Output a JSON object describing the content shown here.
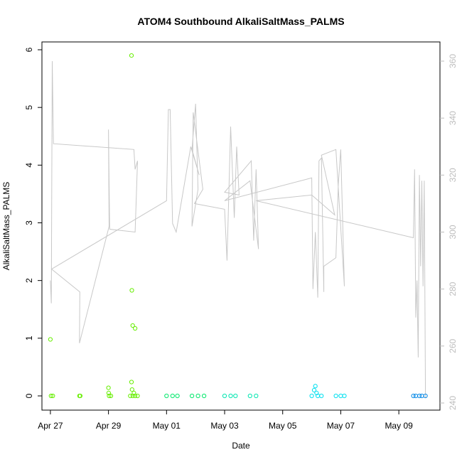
{
  "chart_data": {
    "type": "scatter",
    "title": "ATOM4 Southbound AlkaliSaltMass_PALMS",
    "xlabel": "Date",
    "ylabel": "AlkaliSaltMass_PALMS",
    "ylim": [
      0,
      6
    ],
    "y_ticks": [
      "0",
      "1",
      "2",
      "3",
      "4",
      "5",
      "6"
    ],
    "xlim": [
      "2018-04-26T17:00",
      "2018-05-10T10:00"
    ],
    "x_ticks": [
      {
        "date": "2018-04-27",
        "label": "Apr 27"
      },
      {
        "date": "2018-04-29",
        "label": "Apr 29"
      },
      {
        "date": "2018-05-01",
        "label": "May 01"
      },
      {
        "date": "2018-05-03",
        "label": "May 03"
      },
      {
        "date": "2018-05-05",
        "label": "May 05"
      },
      {
        "date": "2018-05-07",
        "label": "May 07"
      },
      {
        "date": "2018-05-09",
        "label": "May 09"
      }
    ],
    "y2lim": [
      240,
      363
    ],
    "y2_ticks": [
      "240",
      "260",
      "280",
      "300",
      "320",
      "340",
      "360"
    ],
    "series": [
      {
        "color": "#66ee00",
        "points": [
          [
            "2018-04-27T00:00",
            0.98
          ],
          [
            "2018-04-27T00:30",
            0.0
          ],
          [
            "2018-04-27T02:00",
            0.0
          ],
          [
            "2018-04-28T00:00",
            0.0
          ],
          [
            "2018-04-28T00:40",
            0.0
          ],
          [
            "2018-04-29T00:00",
            0.14
          ],
          [
            "2018-04-29T00:10",
            0.05
          ],
          [
            "2018-04-29T00:30",
            0.0
          ],
          [
            "2018-04-29T02:00",
            0.0
          ],
          [
            "2018-04-29T19:00",
            5.9
          ],
          [
            "2018-04-29T19:20",
            1.83
          ],
          [
            "2018-04-29T20:00",
            1.22
          ],
          [
            "2018-04-29T22:00",
            1.17
          ],
          [
            "2018-04-29T19:00",
            0.24
          ],
          [
            "2018-04-29T19:30",
            0.11
          ],
          [
            "2018-04-29T21:00",
            0.05
          ],
          [
            "2018-04-29T18:00",
            0.0
          ],
          [
            "2018-04-29T20:00",
            0.0
          ],
          [
            "2018-04-29T22:00",
            0.0
          ],
          [
            "2018-04-30T00:00",
            0.0
          ]
        ]
      },
      {
        "color": "#00e86a",
        "points": [
          [
            "2018-05-01T00:00",
            0.0
          ],
          [
            "2018-05-01T05:00",
            0.0
          ],
          [
            "2018-05-01T09:00",
            0.0
          ],
          [
            "2018-05-01T21:00",
            0.0
          ],
          [
            "2018-05-02T02:00",
            0.0
          ],
          [
            "2018-05-02T07:00",
            0.0
          ]
        ]
      },
      {
        "color": "#00e6b0",
        "points": [
          [
            "2018-05-03T00:00",
            0.0
          ],
          [
            "2018-05-03T05:00",
            0.0
          ],
          [
            "2018-05-03T09:00",
            0.0
          ],
          [
            "2018-05-03T21:00",
            0.0
          ],
          [
            "2018-05-04T02:00",
            0.0
          ]
        ]
      },
      {
        "color": "#00e0f0",
        "points": [
          [
            "2018-05-06T00:00",
            0.0
          ],
          [
            "2018-05-06T05:00",
            0.0
          ],
          [
            "2018-05-06T08:00",
            0.0
          ],
          [
            "2018-05-06T02:00",
            0.1
          ],
          [
            "2018-05-06T03:00",
            0.17
          ],
          [
            "2018-05-06T04:00",
            0.05
          ],
          [
            "2018-05-06T20:00",
            0.0
          ],
          [
            "2018-05-07T00:00",
            0.0
          ],
          [
            "2018-05-07T03:00",
            0.0
          ]
        ]
      },
      {
        "color": "#0a8ae6",
        "points": [
          [
            "2018-05-09T12:00",
            0.0
          ],
          [
            "2018-05-09T14:00",
            0.0
          ],
          [
            "2018-05-09T17:00",
            0.0
          ],
          [
            "2018-05-09T19:00",
            0.0
          ],
          [
            "2018-05-09T22:00",
            0.0
          ]
        ]
      }
    ],
    "secondary_line": {
      "color": "#c8c8c8",
      "points": [
        [
          "2018-04-27T00:00",
          283
        ],
        [
          "2018-04-27T00:45",
          275
        ],
        [
          "2018-04-27T01:30",
          360
        ],
        [
          "2018-04-27T02:30",
          331
        ],
        [
          "2018-04-29T21:00",
          329
        ],
        [
          "2018-04-29T22:00",
          322
        ],
        [
          "2018-04-30T00:00",
          325
        ],
        [
          "2018-04-29T22:00",
          300
        ],
        [
          "2018-04-29T01:00",
          301
        ],
        [
          "2018-04-29T00:00",
          336
        ],
        [
          "2018-04-29T00:30",
          302
        ],
        [
          "2018-04-28T00:00",
          261
        ],
        [
          "2018-04-28T00:20",
          279
        ],
        [
          "2018-04-27T01:00",
          287
        ],
        [
          "2018-05-01T00:00",
          311
        ],
        [
          "2018-05-01T01:30",
          343
        ],
        [
          "2018-05-01T03:00",
          343
        ],
        [
          "2018-05-01T05:00",
          303
        ],
        [
          "2018-05-01T08:00",
          300
        ],
        [
          "2018-05-01T20:00",
          330
        ],
        [
          "2018-05-02T03:00",
          320
        ],
        [
          "2018-05-01T21:00",
          329
        ],
        [
          "2018-05-02T00:00",
          345
        ],
        [
          "2018-05-02T02:00",
          315
        ],
        [
          "2018-05-01T21:00",
          302
        ],
        [
          "2018-05-01T22:00",
          342
        ],
        [
          "2018-05-02T06:00",
          315
        ],
        [
          "2018-05-01T23:00",
          310
        ],
        [
          "2018-05-03T00:00",
          308
        ],
        [
          "2018-05-03T02:00",
          290
        ],
        [
          "2018-05-03T05:00",
          337
        ],
        [
          "2018-05-03T08:00",
          305
        ],
        [
          "2018-05-03T10:00",
          330
        ],
        [
          "2018-05-03T12:00",
          313
        ],
        [
          "2018-05-03T00:00",
          314
        ],
        [
          "2018-05-03T22:00",
          325
        ],
        [
          "2018-05-04T00:00",
          297
        ],
        [
          "2018-05-04T02:00",
          322
        ],
        [
          "2018-05-04T04:00",
          294
        ],
        [
          "2018-05-03T21:00",
          318
        ],
        [
          "2018-05-03T00:00",
          311
        ],
        [
          "2018-05-06T00:00",
          319
        ],
        [
          "2018-05-06T01:00",
          280
        ],
        [
          "2018-05-06T03:00",
          300
        ],
        [
          "2018-05-06T05:00",
          277
        ],
        [
          "2018-05-06T06:00",
          325
        ],
        [
          "2018-05-06T08:00",
          326
        ],
        [
          "2018-05-06T10:00",
          279
        ],
        [
          "2018-05-06T10:00",
          288
        ],
        [
          "2018-05-06T20:00",
          291
        ],
        [
          "2018-05-06T22:00",
          317
        ],
        [
          "2018-05-07T00:00",
          329
        ],
        [
          "2018-05-07T03:00",
          281
        ],
        [
          "2018-05-06T20:00",
          329
        ],
        [
          "2018-05-06T08:00",
          327
        ],
        [
          "2018-05-06T19:00",
          306
        ],
        [
          "2018-05-06T00:00",
          313
        ],
        [
          "2018-05-04T02:00",
          311
        ],
        [
          "2018-05-09T12:00",
          298
        ],
        [
          "2018-05-09T13:00",
          322
        ],
        [
          "2018-05-09T14:00",
          270
        ],
        [
          "2018-05-09T15:00",
          283
        ],
        [
          "2018-05-09T16:00",
          256
        ],
        [
          "2018-05-09T17:00",
          320
        ],
        [
          "2018-05-09T18:00",
          288
        ],
        [
          "2018-05-09T19:00",
          318
        ],
        [
          "2018-05-09T20:00",
          281
        ],
        [
          "2018-05-09T21:00",
          318
        ],
        [
          "2018-05-09T22:00",
          242
        ]
      ]
    }
  }
}
